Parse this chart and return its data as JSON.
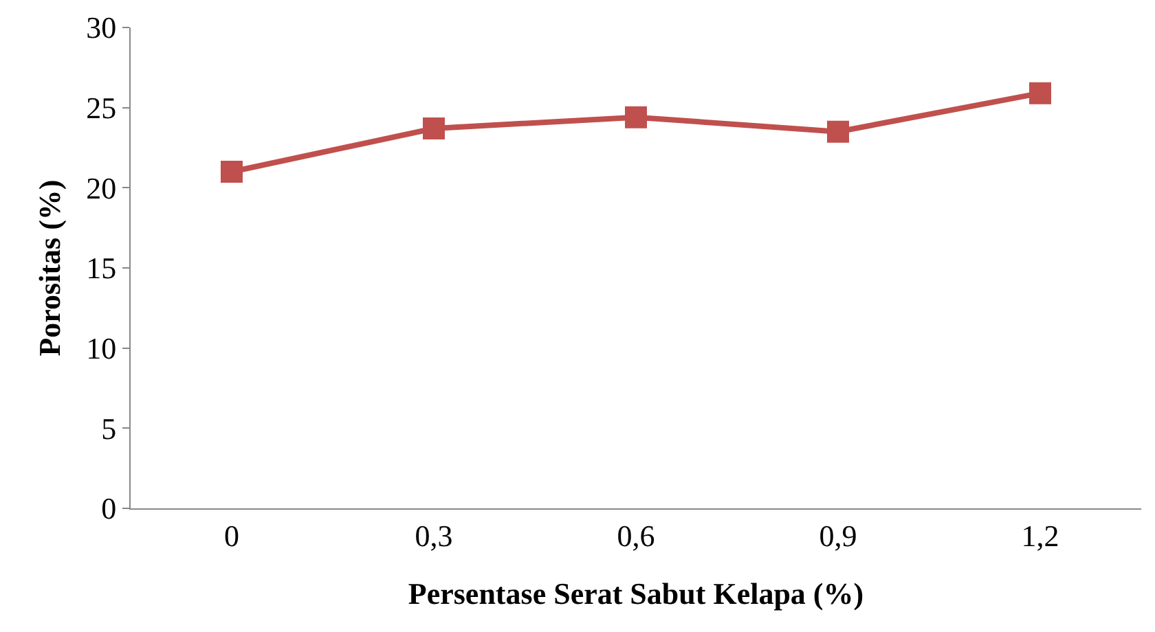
{
  "chart_data": {
    "type": "line",
    "xlabel": "Persentase Serat Sabut Kelapa (%)",
    "ylabel": "Porositas (%)",
    "categories": [
      "0",
      "0,3",
      "0,6",
      "0,9",
      "1,2"
    ],
    "series": [
      {
        "color": "#c0504d",
        "values": [
          21.0,
          23.7,
          24.4,
          23.5,
          25.9
        ]
      }
    ],
    "ylim": [
      0,
      30
    ],
    "yticks": [
      0,
      5,
      10,
      15,
      20,
      25,
      30
    ],
    "grid": false,
    "marker": "square",
    "line_style": "solid"
  }
}
